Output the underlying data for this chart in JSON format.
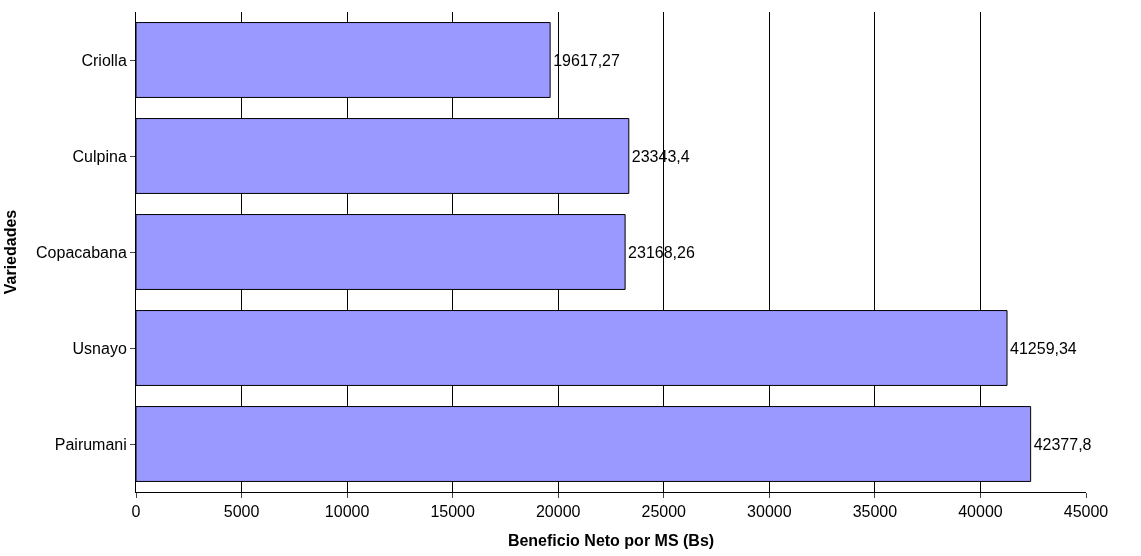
{
  "chart_data": {
    "type": "bar",
    "orientation": "horizontal",
    "xlabel": "Beneficio Neto por MS (Bs)",
    "ylabel": "Variedades",
    "categories": [
      "Criolla",
      "Culpina",
      "Copacabana",
      "Usnayo",
      "Pairumani"
    ],
    "values": [
      19617.27,
      23343.4,
      23168.26,
      41259.34,
      42377.8
    ],
    "value_labels": [
      "19617,27",
      "23343,4",
      "23168,26",
      "41259,34",
      "42377,8"
    ],
    "color": "#9999ff",
    "xlim": [
      0,
      45000
    ],
    "xticks": [
      0,
      5000,
      10000,
      15000,
      20000,
      25000,
      30000,
      35000,
      40000,
      45000
    ],
    "grid": "x"
  }
}
